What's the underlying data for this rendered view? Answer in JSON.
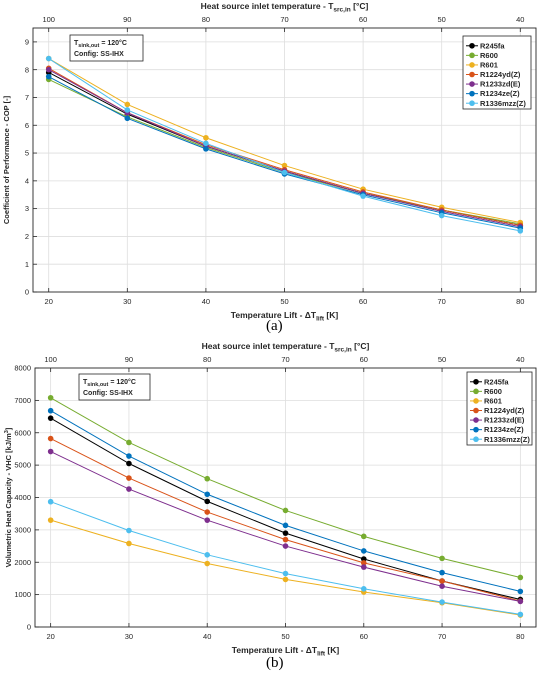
{
  "chart_data": [
    {
      "type": "line",
      "panel_label": "(a)",
      "top_axis_label": "Heat source inlet temperature - T",
      "top_axis_sub": "src,in",
      "top_axis_unit": " [°C]",
      "top_ticks": [
        100,
        90,
        80,
        70,
        60,
        50,
        40
      ],
      "xlabel": "Temperature Lift - ΔT",
      "xlabel_sub": "lift",
      "xlabel_unit": " [K]",
      "ylabel": "Coefficient of Performance - COP [-]",
      "x": [
        20,
        30,
        40,
        50,
        60,
        70,
        80
      ],
      "xlim": [
        18,
        82
      ],
      "ylim": [
        0,
        9.5
      ],
      "yticks": [
        0,
        1,
        2,
        3,
        4,
        5,
        6,
        7,
        8,
        9
      ],
      "grid": true,
      "legend_position": "top-right",
      "annotation": {
        "line1_main": "T",
        "line1_sub": "sink,out",
        "line1_rest": " = 120°C",
        "line2": "Config: SS-IHX"
      },
      "series": [
        {
          "name": "R245fa",
          "color": "#000000",
          "values": [
            7.9,
            6.4,
            5.25,
            4.35,
            3.55,
            2.95,
            2.4
          ]
        },
        {
          "name": "R600",
          "color": "#77AC30",
          "values": [
            7.65,
            6.3,
            5.2,
            4.3,
            3.55,
            2.95,
            2.45
          ]
        },
        {
          "name": "R601",
          "color": "#EDB120",
          "values": [
            8.4,
            6.75,
            5.55,
            4.55,
            3.7,
            3.05,
            2.5
          ]
        },
        {
          "name": "R1224yd(Z)",
          "color": "#D95319",
          "values": [
            8.05,
            6.45,
            5.3,
            4.4,
            3.6,
            2.95,
            2.4
          ]
        },
        {
          "name": "R1233zd(E)",
          "color": "#7E2F8E",
          "values": [
            8.0,
            6.45,
            5.25,
            4.35,
            3.55,
            2.9,
            2.35
          ]
        },
        {
          "name": "R1234ze(Z)",
          "color": "#0072BD",
          "values": [
            7.75,
            6.25,
            5.15,
            4.25,
            3.5,
            2.85,
            2.3
          ]
        },
        {
          "name": "R1336mzz(Z)",
          "color": "#4DBEEE",
          "values": [
            8.4,
            6.55,
            5.35,
            4.3,
            3.45,
            2.75,
            2.2
          ]
        }
      ]
    },
    {
      "type": "line",
      "panel_label": "(b)",
      "top_axis_label": "Heat source inlet temperature - T",
      "top_axis_sub": "src,in",
      "top_axis_unit": " [°C]",
      "top_ticks": [
        100,
        90,
        80,
        70,
        60,
        50,
        40
      ],
      "xlabel": "Temperature Lift - ΔT",
      "xlabel_sub": "lift",
      "xlabel_unit": " [K]",
      "ylabel": "Volumetric Heat Capacity - VHC [kJ/m",
      "ylabel_sup": "3",
      "ylabel_end": "]",
      "x": [
        20,
        30,
        40,
        50,
        60,
        70,
        80
      ],
      "xlim": [
        18,
        82
      ],
      "ylim": [
        0,
        8000
      ],
      "yticks": [
        0,
        1000,
        2000,
        3000,
        4000,
        5000,
        6000,
        7000,
        8000
      ],
      "grid": true,
      "legend_position": "top-right",
      "annotation": {
        "line1_main": "T",
        "line1_sub": "sink,out",
        "line1_rest": " = 120°C",
        "line2": "Config: SS-IHX"
      },
      "series": [
        {
          "name": "R245fa",
          "color": "#000000",
          "values": [
            6450,
            5050,
            3880,
            2900,
            2100,
            1420,
            850
          ]
        },
        {
          "name": "R600",
          "color": "#77AC30",
          "values": [
            7080,
            5700,
            4580,
            3600,
            2800,
            2120,
            1530
          ]
        },
        {
          "name": "R601",
          "color": "#EDB120",
          "values": [
            3300,
            2580,
            1960,
            1470,
            1080,
            750,
            370
          ]
        },
        {
          "name": "R1224yd(Z)",
          "color": "#D95319",
          "values": [
            5820,
            4600,
            3550,
            2700,
            1980,
            1420,
            800
          ]
        },
        {
          "name": "R1233zd(E)",
          "color": "#7E2F8E",
          "values": [
            5420,
            4260,
            3300,
            2500,
            1850,
            1260,
            790
          ]
        },
        {
          "name": "R1234ze(Z)",
          "color": "#0072BD",
          "values": [
            6680,
            5280,
            4100,
            3140,
            2350,
            1680,
            1100
          ]
        },
        {
          "name": "R1336mzz(Z)",
          "color": "#4DBEEE",
          "values": [
            3870,
            2980,
            2230,
            1650,
            1180,
            770,
            390
          ]
        }
      ]
    }
  ]
}
